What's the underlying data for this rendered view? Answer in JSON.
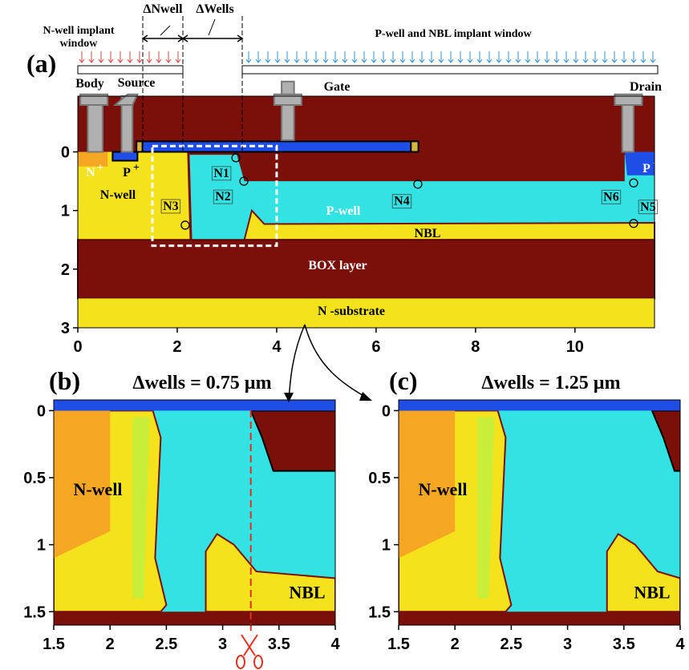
{
  "header": {
    "dnwell": "ΔNwell",
    "dwells": "ΔWells",
    "nwell_window": [
      "N-well implant",
      "window"
    ],
    "pwell_window": "P-well and NBL implant window"
  },
  "panels": [
    {
      "label": "(a)",
      "xlim": [
        0,
        11.6
      ],
      "ylim": [
        -0.95,
        3
      ],
      "xticks": [
        0,
        2,
        4,
        6,
        8,
        10
      ],
      "yticks": [
        0,
        1,
        2,
        3
      ],
      "labels": {
        "body": "Body",
        "source": "Source",
        "gate": "Gate",
        "drain": "Drain",
        "nwell": "N-well",
        "pwell": "P-well",
        "nbl": "NBL",
        "box": "BOX layer",
        "nsub": "N -substrate"
      },
      "dopants": {
        "n_plus": {
          "base": "N",
          "sup": "+"
        },
        "p_plus": {
          "base": "P",
          "sup": "+"
        },
        "p_plus_drain": {
          "base": "P",
          "sup": "+"
        }
      },
      "nodes": [
        "N1",
        "N2",
        "N3",
        "N4",
        "N5",
        "N6"
      ]
    },
    {
      "label": "(b)",
      "title": "Δwells = 0.75 µm",
      "xlim": [
        1.5,
        4
      ],
      "ylim": [
        -0.08,
        1.6
      ],
      "xticks": [
        1.5,
        2,
        2.5,
        3,
        3.5,
        4
      ],
      "yticks": [
        0,
        0.5,
        1,
        1.5
      ],
      "labels": {
        "nwell": "N-well",
        "nbl": "NBL"
      }
    },
    {
      "label": "(c)",
      "title": "Δwells = 1.25 µm",
      "xlim": [
        1.5,
        4
      ],
      "ylim": [
        -0.08,
        1.6
      ],
      "xticks": [
        1.5,
        2,
        2.5,
        3,
        3.5,
        4
      ],
      "yticks": [
        0,
        0.5,
        1,
        1.5
      ],
      "labels": {
        "nwell": "N-well",
        "nbl": "NBL"
      }
    }
  ]
}
